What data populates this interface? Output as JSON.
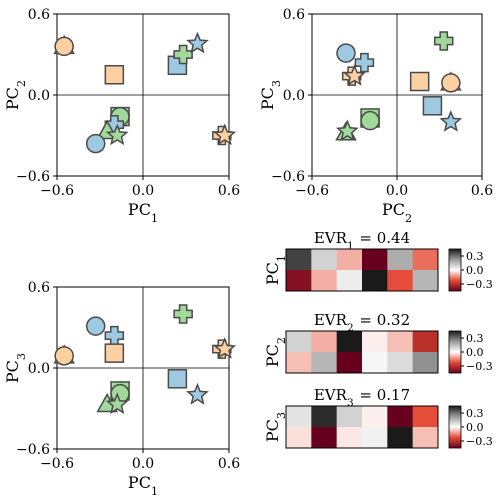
{
  "colors": {
    "blue": "#9ecae1",
    "green": "#a1d99b",
    "orange": "#fdd0a2",
    "edge": "#4a4a4a"
  },
  "chart_data": [
    {
      "id": "pc1_pc2",
      "type": "scatter",
      "xlabel": "PC",
      "xsub": "1",
      "ylabel": "PC",
      "ysub": "2",
      "xlim": [
        -0.6,
        0.6
      ],
      "ylim": [
        -0.6,
        0.6
      ],
      "ticks": [
        "−0.6",
        "0.0",
        "0.6"
      ],
      "points": [
        {
          "shape": "triangle",
          "color": "orange",
          "x": -0.55,
          "y": 0.36
        },
        {
          "shape": "circle",
          "color": "orange",
          "x": -0.55,
          "y": 0.36
        },
        {
          "shape": "square",
          "color": "orange",
          "x": -0.2,
          "y": 0.15
        },
        {
          "shape": "square",
          "color": "blue",
          "x": 0.24,
          "y": 0.22
        },
        {
          "shape": "cross",
          "color": "green",
          "x": 0.28,
          "y": 0.3
        },
        {
          "shape": "star",
          "color": "blue",
          "x": 0.38,
          "y": 0.38
        },
        {
          "shape": "square",
          "color": "green",
          "x": -0.16,
          "y": -0.16
        },
        {
          "shape": "circle",
          "color": "green",
          "x": -0.16,
          "y": -0.16
        },
        {
          "shape": "cross",
          "color": "blue",
          "x": -0.2,
          "y": -0.22
        },
        {
          "shape": "triangle",
          "color": "green",
          "x": -0.25,
          "y": -0.27
        },
        {
          "shape": "star",
          "color": "green",
          "x": -0.18,
          "y": -0.3
        },
        {
          "shape": "circle",
          "color": "blue",
          "x": -0.33,
          "y": -0.36
        },
        {
          "shape": "cross",
          "color": "orange",
          "x": 0.55,
          "y": -0.3
        },
        {
          "shape": "star",
          "color": "orange",
          "x": 0.57,
          "y": -0.3
        }
      ]
    },
    {
      "id": "pc2_pc3",
      "type": "scatter",
      "xlabel": "PC",
      "xsub": "2",
      "ylabel": "PC",
      "ysub": "3",
      "xlim": [
        -0.6,
        0.6
      ],
      "ylim": [
        -0.6,
        0.6
      ],
      "ticks": [
        "−0.6",
        "0.0",
        "0.6"
      ],
      "points": [
        {
          "shape": "circle",
          "color": "blue",
          "x": -0.36,
          "y": 0.31
        },
        {
          "shape": "cross",
          "color": "blue",
          "x": -0.23,
          "y": 0.24
        },
        {
          "shape": "cross",
          "color": "orange",
          "x": -0.32,
          "y": 0.14
        },
        {
          "shape": "star",
          "color": "orange",
          "x": -0.3,
          "y": 0.14
        },
        {
          "shape": "cross",
          "color": "green",
          "x": 0.33,
          "y": 0.4
        },
        {
          "shape": "square",
          "color": "orange",
          "x": 0.16,
          "y": 0.1
        },
        {
          "shape": "triangle",
          "color": "orange",
          "x": 0.38,
          "y": 0.09
        },
        {
          "shape": "circle",
          "color": "orange",
          "x": 0.38,
          "y": 0.09
        },
        {
          "shape": "square",
          "color": "blue",
          "x": 0.25,
          "y": -0.08
        },
        {
          "shape": "star",
          "color": "blue",
          "x": 0.38,
          "y": -0.2
        },
        {
          "shape": "square",
          "color": "green",
          "x": -0.19,
          "y": -0.17
        },
        {
          "shape": "circle",
          "color": "green",
          "x": -0.19,
          "y": -0.19
        },
        {
          "shape": "triangle",
          "color": "green",
          "x": -0.36,
          "y": -0.28
        },
        {
          "shape": "star",
          "color": "green",
          "x": -0.35,
          "y": -0.27
        }
      ]
    },
    {
      "id": "pc1_pc3",
      "type": "scatter",
      "xlabel": "PC",
      "xsub": "1",
      "ylabel": "PC",
      "ysub": "3",
      "xlim": [
        -0.6,
        0.6
      ],
      "ylim": [
        -0.6,
        0.6
      ],
      "ticks": [
        "−0.6",
        "0.0",
        "0.6"
      ],
      "points": [
        {
          "shape": "circle",
          "color": "blue",
          "x": -0.33,
          "y": 0.31
        },
        {
          "shape": "cross",
          "color": "blue",
          "x": -0.2,
          "y": 0.24
        },
        {
          "shape": "square",
          "color": "orange",
          "x": -0.2,
          "y": 0.11
        },
        {
          "shape": "triangle",
          "color": "orange",
          "x": -0.55,
          "y": 0.09
        },
        {
          "shape": "circle",
          "color": "orange",
          "x": -0.55,
          "y": 0.09
        },
        {
          "shape": "cross",
          "color": "green",
          "x": 0.28,
          "y": 0.4
        },
        {
          "shape": "cross",
          "color": "orange",
          "x": 0.55,
          "y": 0.14
        },
        {
          "shape": "star",
          "color": "orange",
          "x": 0.57,
          "y": 0.14
        },
        {
          "shape": "square",
          "color": "blue",
          "x": 0.24,
          "y": -0.08
        },
        {
          "shape": "star",
          "color": "blue",
          "x": 0.38,
          "y": -0.2
        },
        {
          "shape": "square",
          "color": "green",
          "x": -0.16,
          "y": -0.17
        },
        {
          "shape": "circle",
          "color": "green",
          "x": -0.16,
          "y": -0.19
        },
        {
          "shape": "triangle",
          "color": "green",
          "x": -0.25,
          "y": -0.27
        },
        {
          "shape": "star",
          "color": "green",
          "x": -0.18,
          "y": -0.27
        }
      ]
    },
    {
      "id": "evr_heatmaps",
      "type": "heatmap",
      "vlim": [
        -0.45,
        0.45
      ],
      "cbar_ticks": [
        {
          "v": 0.3,
          "label": "0.3"
        },
        {
          "v": 0.0,
          "label": "0.0"
        },
        {
          "v": -0.3,
          "label": "−0.3"
        }
      ],
      "panels": [
        {
          "label": "PC",
          "sub": "1",
          "title_prefix": "EVR",
          "title_sub": "1",
          "title_value": " = 0.44",
          "rows": [
            [
              0.38,
              0.1,
              -0.1,
              -0.5,
              0.18,
              -0.18
            ],
            [
              -0.4,
              -0.1,
              0.04,
              0.45,
              -0.22,
              0.16
            ]
          ]
        },
        {
          "label": "PC",
          "sub": "2",
          "title_prefix": "EVR",
          "title_sub": "2",
          "title_value": " = 0.32",
          "rows": [
            [
              0.1,
              -0.1,
              0.45,
              -0.02,
              -0.08,
              -0.3
            ],
            [
              -0.08,
              0.16,
              -0.45,
              0.02,
              0.08,
              0.24
            ]
          ]
        },
        {
          "label": "PC",
          "sub": "3",
          "title_prefix": "EVR",
          "title_sub": "3",
          "title_value": " = 0.17",
          "rows": [
            [
              0.06,
              0.42,
              0.1,
              -0.02,
              -0.48,
              -0.22
            ],
            [
              -0.04,
              -0.48,
              -0.03,
              0.03,
              0.45,
              -0.08
            ]
          ]
        }
      ]
    }
  ]
}
